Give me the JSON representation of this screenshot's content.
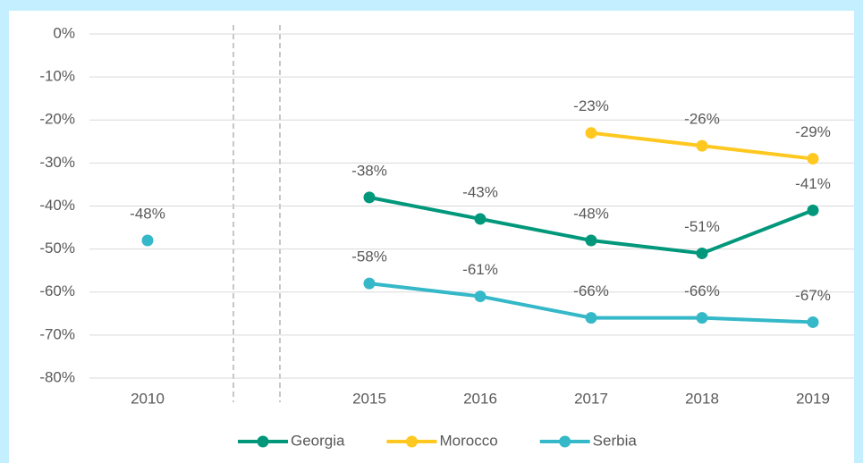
{
  "chart_data": {
    "type": "line",
    "categories": [
      "2010",
      null,
      "2015",
      "2016",
      "2017",
      "2018",
      "2019"
    ],
    "series": [
      {
        "name": "Georgia",
        "color": "#00977a",
        "values": [
          null,
          null,
          -38,
          -43,
          -48,
          -51,
          -41
        ],
        "value_labels": [
          null,
          null,
          "-38%",
          "-43%",
          "-48%",
          "-51%",
          "-41%"
        ]
      },
      {
        "name": "Morocco",
        "color": "#ffc820",
        "values": [
          null,
          null,
          null,
          null,
          -23,
          -26,
          -29
        ],
        "value_labels": [
          null,
          null,
          null,
          null,
          "-23%",
          "-26%",
          "-29%"
        ]
      },
      {
        "name": "Serbia",
        "color": "#35b8c8",
        "values": [
          -48,
          null,
          -58,
          -61,
          -66,
          -66,
          -67
        ],
        "value_labels": [
          "-48%",
          null,
          "-58%",
          "-61%",
          "-66%",
          "-66%",
          "-67%"
        ]
      }
    ],
    "ylim": [
      -80,
      0
    ],
    "yticks": [
      {
        "value": 0,
        "label": "0%"
      },
      {
        "value": -10,
        "label": "-10%"
      },
      {
        "value": -20,
        "label": "-20%"
      },
      {
        "value": -30,
        "label": "-30%"
      },
      {
        "value": -40,
        "label": "-40%"
      },
      {
        "value": -50,
        "label": "-50%"
      },
      {
        "value": -60,
        "label": "-60%"
      },
      {
        "value": -70,
        "label": "-70%"
      },
      {
        "value": -80,
        "label": "-80%"
      }
    ],
    "grid": true,
    "legend": "bottom"
  }
}
